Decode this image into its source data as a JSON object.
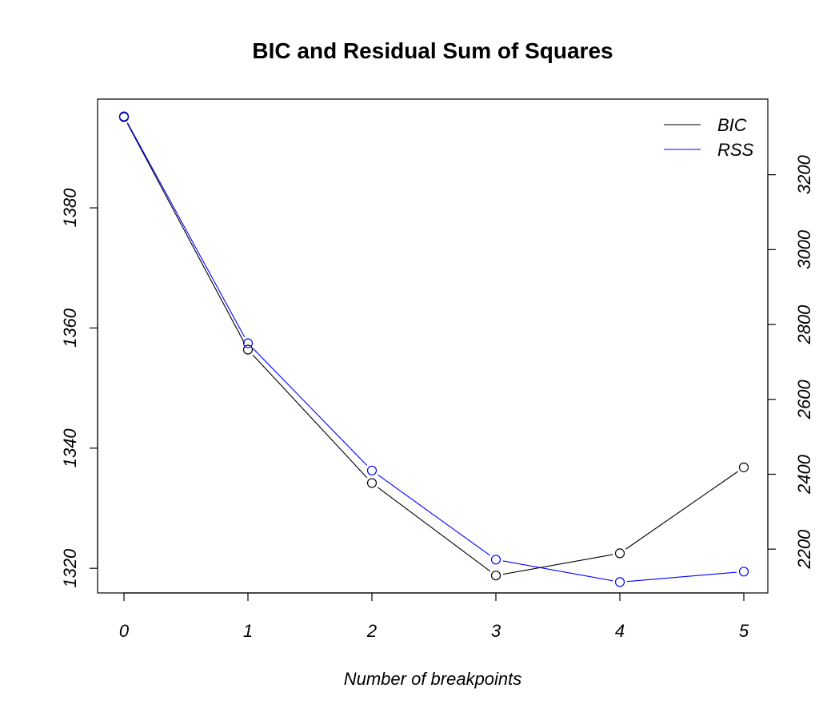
{
  "chart_data": {
    "type": "line",
    "title": "BIC and Residual Sum of Squares",
    "xlabel": "Number of breakpoints",
    "ylabel": "",
    "x": [
      0,
      1,
      2,
      3,
      4,
      5
    ],
    "x_ticks": [
      "0",
      "1",
      "2",
      "3",
      "4",
      "5"
    ],
    "y_left": {
      "lim": [
        1315.9,
        1398.1
      ],
      "ticks": [
        1320,
        1340,
        1360,
        1380
      ]
    },
    "y_right": {
      "lim": [
        2083,
        3402
      ],
      "ticks": [
        2200,
        2400,
        2600,
        2800,
        3000,
        3200
      ]
    },
    "series": [
      {
        "name": "BIC",
        "axis": "left",
        "color": "#000000",
        "values": [
          1395.1,
          1356.4,
          1334.2,
          1318.8,
          1322.5,
          1336.8
        ]
      },
      {
        "name": "RSS",
        "axis": "right",
        "color": "#0000ff",
        "values": [
          3356,
          2750,
          2410,
          2172,
          2112,
          2140
        ]
      }
    ],
    "legend": {
      "position": "top-right",
      "entries": [
        "BIC",
        "RSS"
      ]
    },
    "grid": false,
    "markers": "open-circle"
  }
}
